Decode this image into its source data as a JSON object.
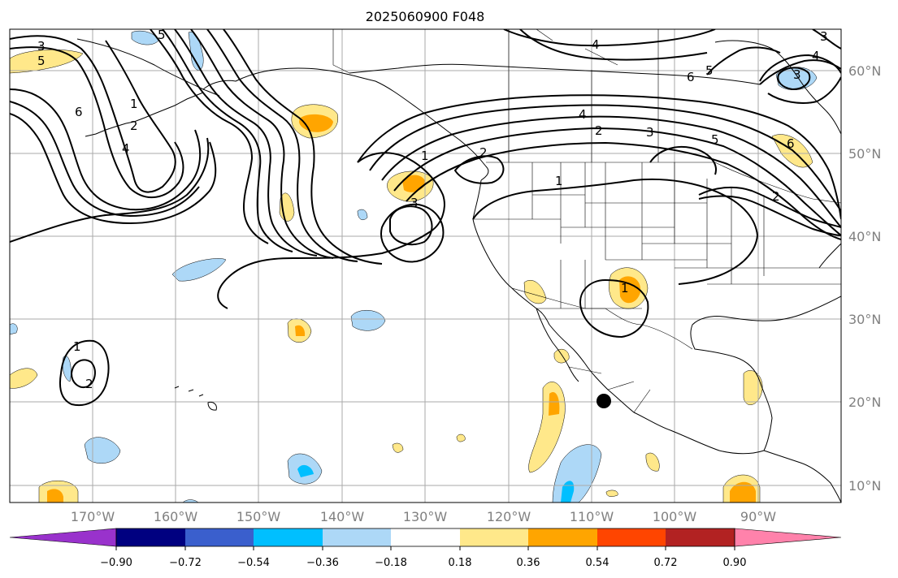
{
  "title": "2025060900 F048",
  "map": {
    "lon_labels": [
      "170°W",
      "160°W",
      "150°W",
      "140°W",
      "130°W",
      "120°W",
      "110°W",
      "100°W",
      "90°W"
    ],
    "lat_labels": [
      "60°N",
      "50°N",
      "40°N",
      "30°N",
      "20°N",
      "10°N"
    ],
    "contour_labels": [
      "3",
      "5",
      "6",
      "1",
      "2",
      "4",
      "5",
      "4",
      "6",
      "5",
      "3",
      "4",
      "3",
      "2",
      "1",
      "3",
      "1",
      "2",
      "6",
      "4",
      "3",
      "5",
      "2",
      "1",
      "1",
      "2"
    ],
    "marker": "filled-dot"
  },
  "colorbar": {
    "tick_labels": [
      "−0.90",
      "−0.72",
      "−0.54",
      "−0.36",
      "−0.18",
      "0.18",
      "0.36",
      "0.54",
      "0.72",
      "0.90"
    ],
    "colors": {
      "under": "#9932cc",
      "bins": [
        "#000080",
        "#3a5fcd",
        "#00bfff",
        "#add8f7",
        "#ffffff",
        "#ffe88a",
        "#ffa500",
        "#ff4500",
        "#b22222"
      ],
      "over": "#ff82ab"
    }
  },
  "styles": {
    "positive_light": "#ffe88a",
    "positive_mid": "#ffa500",
    "negative_light": "#add8f7",
    "negative_mid": "#00bfff",
    "grid": "#aaaaaa",
    "coast": "#000000"
  }
}
